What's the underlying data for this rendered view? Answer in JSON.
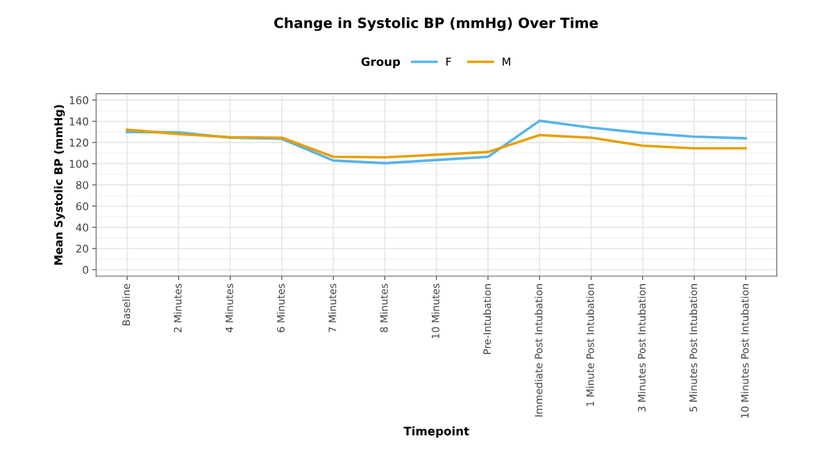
{
  "chart_data": {
    "type": "line",
    "title": "Change in Systolic BP (mmHg) Over Time",
    "xlabel": "Timepoint",
    "ylabel": "Mean Systolic BP (mmHg)",
    "legend_title": "Group",
    "legend": "top",
    "categories": [
      "Baseline",
      "2 Minutes",
      "4 Minutes",
      "6 Minutes",
      "7 Minutes",
      "8 Minutes",
      "10 Minutes",
      "Pre-Intubation",
      "Immediate Post Intubation",
      "1 Minute Post Intubation",
      "3 Minutes Post Intubation",
      "5 Minutes Post Intubation",
      "10 Minutes Post Intubation"
    ],
    "series": [
      {
        "name": "F",
        "color": "#56b4e9",
        "values": [
          130,
          129.5,
          124.5,
          123.5,
          103,
          100.5,
          103.5,
          106.5,
          140.5,
          134,
          129,
          125.5,
          124
        ]
      },
      {
        "name": "M",
        "color": "#e69f00",
        "values": [
          132,
          128,
          125,
          124.5,
          106.5,
          106,
          108.5,
          111,
          127,
          124.5,
          117,
          114.5,
          114.5
        ]
      }
    ],
    "ylim": [
      -6,
      166
    ],
    "yticks": [
      0,
      20,
      40,
      60,
      80,
      100,
      120,
      140,
      160
    ],
    "grid": true,
    "marker": "none",
    "line_style": "solid"
  }
}
